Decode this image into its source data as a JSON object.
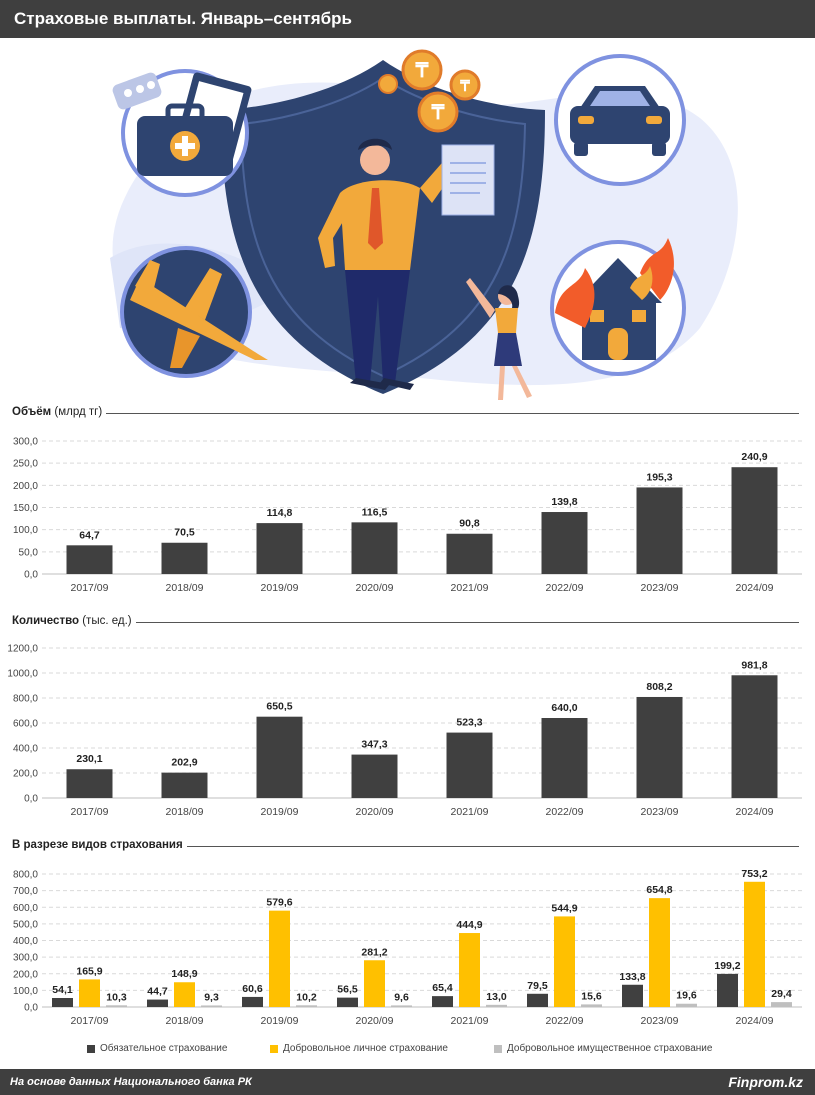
{
  "header": {
    "title": "Страховые выплаты. Январь–сентябрь"
  },
  "colors": {
    "dark_bar": "#404040",
    "yellow": "#ffc000",
    "gray": "#bfbfbf",
    "header_bg": "#3f3f3f",
    "grid": "#d9d9d9"
  },
  "illustration": {
    "icons": [
      "medical-bag-icon",
      "clipboard-icon",
      "pills-icon",
      "tenge-coin-icon",
      "shield-icon",
      "businessman-icon",
      "businesswoman-icon",
      "car-icon",
      "airplane-icon",
      "burning-house-icon"
    ]
  },
  "sections": {
    "volume": {
      "title_bold": "Объём",
      "title_unit": " (млрд тг)"
    },
    "quantity": {
      "title_bold": "Количество",
      "title_unit": " (тыс. ед.)"
    },
    "types": {
      "title_bold": "В разрезе видов страхования",
      "title_unit": ""
    }
  },
  "chart_data": [
    {
      "type": "bar",
      "categories": [
        "2017/09",
        "2018/09",
        "2019/09",
        "2020/09",
        "2021/09",
        "2022/09",
        "2023/09",
        "2024/09"
      ],
      "values": [
        64.7,
        70.5,
        114.8,
        116.5,
        90.8,
        139.8,
        195.3,
        240.9
      ],
      "value_labels": [
        "64,7",
        "70,5",
        "114,8",
        "116,5",
        "90,8",
        "139,8",
        "195,3",
        "240,9"
      ],
      "ylim": [
        0,
        300
      ],
      "yticks": [
        "0,0",
        "50,0",
        "100,0",
        "150,0",
        "200,0",
        "250,0",
        "300,0"
      ],
      "grid": true
    },
    {
      "type": "bar",
      "categories": [
        "2017/09",
        "2018/09",
        "2019/09",
        "2020/09",
        "2021/09",
        "2022/09",
        "2023/09",
        "2024/09"
      ],
      "values": [
        230.1,
        202.9,
        650.5,
        347.3,
        523.3,
        640.0,
        808.2,
        981.8
      ],
      "value_labels": [
        "230,1",
        "202,9",
        "650,5",
        "347,3",
        "523,3",
        "640,0",
        "808,2",
        "981,8"
      ],
      "ylim": [
        0,
        1200
      ],
      "yticks": [
        "0,0",
        "200,0",
        "400,0",
        "600,0",
        "800,0",
        "1000,0",
        "1200,0"
      ],
      "grid": true
    },
    {
      "type": "bar",
      "categories": [
        "2017/09",
        "2018/09",
        "2019/09",
        "2020/09",
        "2021/09",
        "2022/09",
        "2023/09",
        "2024/09"
      ],
      "ylim": [
        0,
        800
      ],
      "yticks": [
        "0,0",
        "100,0",
        "200,0",
        "300,0",
        "400,0",
        "500,0",
        "600,0",
        "700,0",
        "800,0"
      ],
      "grid": true,
      "legend_position": "bottom",
      "series": [
        {
          "name": "Обязательное страхование",
          "color": "#404040",
          "values": [
            54.1,
            44.7,
            60.6,
            56.5,
            65.4,
            79.5,
            133.8,
            199.2
          ],
          "value_labels": [
            "54,1",
            "44,7",
            "60,6",
            "56,5",
            "65,4",
            "79,5",
            "133,8",
            "199,2"
          ]
        },
        {
          "name": "Добровольное личное страхование",
          "color": "#ffc000",
          "values": [
            165.9,
            148.9,
            579.6,
            281.2,
            444.9,
            544.9,
            654.8,
            753.2
          ],
          "value_labels": [
            "165,9",
            "148,9",
            "579,6",
            "281,2",
            "444,9",
            "544,9",
            "654,8",
            "753,2"
          ]
        },
        {
          "name": "Добровольное имущественное страхование",
          "color": "#bfbfbf",
          "values": [
            10.3,
            9.3,
            10.2,
            9.6,
            13.0,
            15.6,
            19.6,
            29.4
          ],
          "value_labels": [
            "10,3",
            "9,3",
            "10,2",
            "9,6",
            "13,0",
            "15,6",
            "19,6",
            "29,4"
          ]
        }
      ]
    }
  ],
  "footer": {
    "source": "На основе данных Национального банка РК",
    "brand": "Finprom.kz"
  }
}
